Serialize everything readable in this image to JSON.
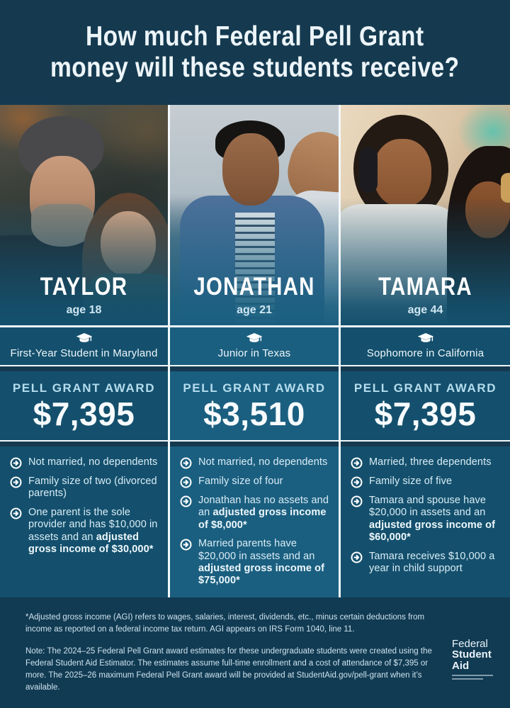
{
  "title": {
    "line1": "How much Federal Pell Grant",
    "line2": "money will these students receive?"
  },
  "award_label": "PELL GRANT AWARD",
  "icons": {
    "status": "graduation-cap-icon",
    "bullet": "arrow-circle-icon"
  },
  "colors": {
    "navy_background": "#153a50",
    "footer_navy": "#113b53",
    "card_teal_outer": "#14506d",
    "card_teal_middle": "#1b5f80",
    "award_label_blue": "#b5ddee",
    "divider_white": "#f2f8fb"
  },
  "students": [
    {
      "name": "TAYLOR",
      "age": "age 18",
      "status": "First-Year Student in Maryland",
      "award": "$7,395",
      "bullets": [
        [
          {
            "t": "Not married, no dependents",
            "b": false
          }
        ],
        [
          {
            "t": "Family size of two (divorced parents)",
            "b": false
          }
        ],
        [
          {
            "t": "One parent is the sole provider and has $10,000 in assets and an ",
            "b": false
          },
          {
            "t": "adjusted gross income of $30,000*",
            "b": true
          }
        ]
      ]
    },
    {
      "name": "JONATHAN",
      "age": "age 21",
      "status": "Junior in Texas",
      "award": "$3,510",
      "bullets": [
        [
          {
            "t": "Not married, no dependents",
            "b": false
          }
        ],
        [
          {
            "t": "Family size of four",
            "b": false
          }
        ],
        [
          {
            "t": "Jonathan has no assets and an ",
            "b": false
          },
          {
            "t": "adjusted gross income of $8,000*",
            "b": true
          }
        ],
        [
          {
            "t": "Married parents have $20,000 in assets and an ",
            "b": false
          },
          {
            "t": "adjusted gross income of $75,000*",
            "b": true
          }
        ]
      ]
    },
    {
      "name": "TAMARA",
      "age": "age 44",
      "status": "Sophomore in California",
      "award": "$7,395",
      "bullets": [
        [
          {
            "t": "Married, three dependents",
            "b": false
          }
        ],
        [
          {
            "t": "Family size of five",
            "b": false
          }
        ],
        [
          {
            "t": "Tamara and spouse have $20,000 in assets and an ",
            "b": false
          },
          {
            "t": "adjusted gross income of $60,000*",
            "b": true
          }
        ],
        [
          {
            "t": "Tamara receives $10,000 a year in child support",
            "b": false
          }
        ]
      ]
    }
  ],
  "footer": {
    "footnote": "*Adjusted gross income (AGI) refers to wages, salaries, interest, dividends, etc., minus certain deductions from income as reported on a federal income tax return. AGI appears on IRS Form 1040, line 11.",
    "note": "Note: The 2024–25 Federal Pell Grant award estimates for these undergraduate students were created using the Federal Student Aid Estimator. The estimates assume full-time enrollment and a cost of attendance of $7,395 or more. The 2025–26 maximum Federal Pell Grant award will be provided at StudentAid.gov/pell-grant when it’s available.",
    "logo": {
      "line1": "Federal",
      "line2": "Student",
      "line3": "Aid"
    }
  }
}
